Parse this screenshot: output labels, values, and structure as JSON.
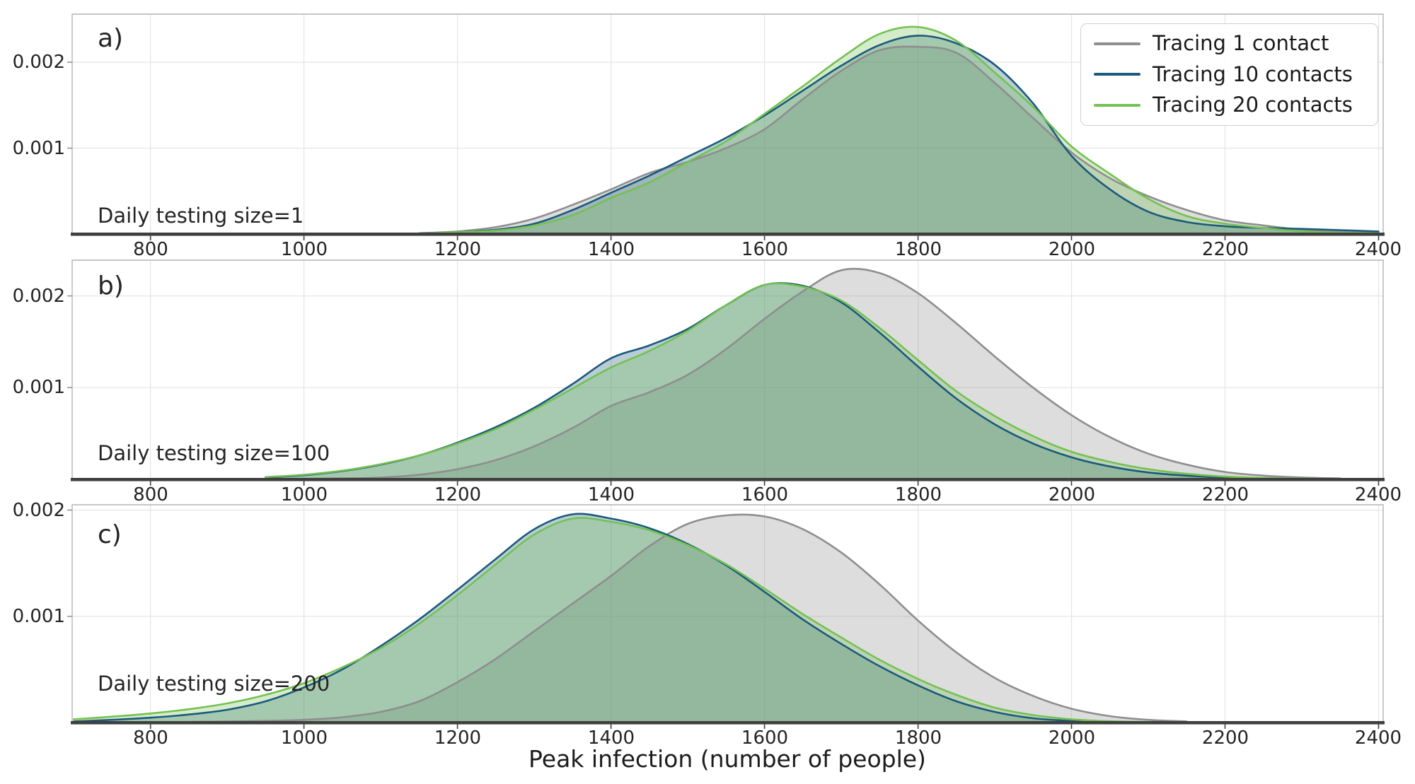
{
  "figure": {
    "xlabel": "Peak infection (number of people)",
    "background": "#ffffff",
    "grid_color": "#e4e4e4",
    "spine_color": "#b3b3b3",
    "baseline_color": "#3f3f3f",
    "tick_color": "#3f3f3f",
    "text_color": "#242424"
  },
  "legend": {
    "position": "upper right",
    "items": [
      {
        "label": "Tracing 1 contact",
        "color": "#8e8e8e"
      },
      {
        "label": "Tracing 10 contacts",
        "color": "#1a5a7c"
      },
      {
        "label": "Tracing 20 contacts",
        "color": "#74c152"
      }
    ]
  },
  "chart_data": [
    {
      "type": "area",
      "panel_label": "a)",
      "annotation": "Daily testing size=1",
      "xlim": [
        700,
        2400
      ],
      "ylim": [
        0,
        0.00256
      ],
      "grid": true,
      "x_ticks": [
        {
          "v": 800,
          "label": "800"
        },
        {
          "v": 1000,
          "label": "1000"
        },
        {
          "v": 1200,
          "label": "1200"
        },
        {
          "v": 1400,
          "label": "1400"
        },
        {
          "v": 1600,
          "label": "1600"
        },
        {
          "v": 1800,
          "label": "1800"
        },
        {
          "v": 2000,
          "label": "2000"
        },
        {
          "v": 2200,
          "label": "2200"
        },
        {
          "v": 2400,
          "label": "2400"
        }
      ],
      "y_ticks": [
        {
          "v": 0.001,
          "label": "0.001"
        },
        {
          "v": 0.002,
          "label": "0.002"
        }
      ],
      "series": [
        {
          "name": "Tracing 1 contact",
          "color": "#8e8e8e",
          "x": [
            1150,
            1200,
            1250,
            1300,
            1350,
            1400,
            1450,
            1500,
            1550,
            1600,
            1650,
            1700,
            1750,
            1800,
            1850,
            1900,
            1950,
            2000,
            2050,
            2100,
            2150,
            2200,
            2250,
            2300,
            2350,
            2400
          ],
          "y": [
            1e-05,
            3e-05,
            8e-05,
            0.00018,
            0.00034,
            0.00052,
            0.00071,
            0.00084,
            0.001,
            0.00122,
            0.00157,
            0.0019,
            0.00214,
            0.00218,
            0.00211,
            0.00176,
            0.00135,
            0.00095,
            0.00065,
            0.00044,
            0.00028,
            0.00016,
            0.0001,
            5e-05,
            2.5e-05,
            1.3e-05
          ]
        },
        {
          "name": "Tracing 10 contacts",
          "color": "#1a5a7c",
          "x": [
            1150,
            1200,
            1250,
            1300,
            1350,
            1400,
            1450,
            1500,
            1550,
            1600,
            1650,
            1700,
            1750,
            1800,
            1850,
            1900,
            1950,
            2000,
            2050,
            2100,
            2150,
            2200,
            2250,
            2300,
            2350,
            2400
          ],
          "y": [
            5e-06,
            2e-05,
            5e-05,
            0.00012,
            0.00028,
            0.00048,
            0.00068,
            0.0009,
            0.00112,
            0.00138,
            0.00167,
            0.00196,
            0.0022,
            0.00231,
            0.00222,
            0.00197,
            0.00152,
            0.00091,
            0.00052,
            0.00026,
            0.00014,
            9e-05,
            7e-05,
            6e-05,
            4.5e-05,
            3e-05
          ]
        },
        {
          "name": "Tracing 20 contacts",
          "color": "#74c152",
          "x": [
            1150,
            1200,
            1250,
            1300,
            1350,
            1400,
            1450,
            1500,
            1550,
            1600,
            1650,
            1700,
            1750,
            1800,
            1850,
            1900,
            1950,
            2000,
            2050,
            2100,
            2150,
            2200,
            2250,
            2300,
            2350,
            2400
          ],
          "y": [
            5e-06,
            2e-05,
            4e-05,
            0.0001,
            0.00022,
            0.00042,
            0.0006,
            0.00084,
            0.00108,
            0.0014,
            0.00172,
            0.00205,
            0.00233,
            0.00241,
            0.00225,
            0.00188,
            0.00148,
            0.00102,
            0.0007,
            0.00041,
            0.00021,
            0.00012,
            7e-05,
            3e-05,
            1.5e-05,
            1e-05
          ]
        }
      ]
    },
    {
      "type": "area",
      "panel_label": "b)",
      "annotation": "Daily testing size=100",
      "xlim": [
        700,
        2400
      ],
      "ylim": [
        0,
        0.00239
      ],
      "grid": true,
      "x_ticks": [
        {
          "v": 800,
          "label": "800"
        },
        {
          "v": 1000,
          "label": "1000"
        },
        {
          "v": 1200,
          "label": "1200"
        },
        {
          "v": 1400,
          "label": "1400"
        },
        {
          "v": 1600,
          "label": "1600"
        },
        {
          "v": 1800,
          "label": "1800"
        },
        {
          "v": 2000,
          "label": "2000"
        },
        {
          "v": 2200,
          "label": "2200"
        },
        {
          "v": 2400,
          "label": "2400"
        }
      ],
      "y_ticks": [
        {
          "v": 0.001,
          "label": "0.001"
        },
        {
          "v": 0.002,
          "label": "0.002"
        }
      ],
      "series": [
        {
          "name": "Tracing 1 contact",
          "color": "#8e8e8e",
          "x": [
            950,
            1000,
            1050,
            1100,
            1150,
            1200,
            1250,
            1300,
            1350,
            1400,
            1450,
            1500,
            1550,
            1600,
            1650,
            1700,
            1750,
            1800,
            1850,
            1900,
            1950,
            2000,
            2050,
            2100,
            2150,
            2200,
            2250,
            2300,
            2350
          ],
          "y": [
            0,
            5e-06,
            1e-05,
            2e-05,
            5e-05,
            0.00011,
            0.00021,
            0.00036,
            0.00056,
            0.0008,
            0.00095,
            0.00114,
            0.00142,
            0.00175,
            0.00205,
            0.00228,
            0.00225,
            0.00203,
            0.0017,
            0.00134,
            0.001,
            0.0007,
            0.00046,
            0.00028,
            0.00016,
            8e-05,
            4e-05,
            2e-05,
            1e-05
          ]
        },
        {
          "name": "Tracing 10 contacts",
          "color": "#1a5a7c",
          "x": [
            950,
            1000,
            1050,
            1100,
            1150,
            1200,
            1250,
            1300,
            1350,
            1400,
            1450,
            1500,
            1550,
            1600,
            1650,
            1700,
            1750,
            1800,
            1850,
            1900,
            1950,
            2000,
            2050,
            2100,
            2150,
            2200,
            2250,
            2300,
            2350
          ],
          "y": [
            2e-05,
            4.5e-05,
            9e-05,
            0.00016,
            0.00026,
            0.0004,
            0.00057,
            0.00078,
            0.00104,
            0.00132,
            0.00146,
            0.00164,
            0.0019,
            0.00212,
            0.00211,
            0.00193,
            0.0016,
            0.00123,
            0.00088,
            0.0006,
            0.00039,
            0.00024,
            0.00014,
            7.5e-05,
            4e-05,
            2e-05,
            1e-05,
            5e-06,
            0
          ]
        },
        {
          "name": "Tracing 20 contacts",
          "color": "#74c152",
          "x": [
            950,
            1000,
            1050,
            1100,
            1150,
            1200,
            1250,
            1300,
            1350,
            1400,
            1450,
            1500,
            1550,
            1600,
            1650,
            1700,
            1750,
            1800,
            1850,
            1900,
            1950,
            2000,
            2050,
            2100,
            2150,
            2200,
            2250,
            2300,
            2350
          ],
          "y": [
            2.5e-05,
            5e-05,
            9.5e-05,
            0.000165,
            0.00026,
            0.00039,
            0.00055,
            0.00076,
            0.00099,
            0.00122,
            0.0014,
            0.00162,
            0.0019,
            0.00212,
            0.0021,
            0.00195,
            0.00165,
            0.0013,
            0.00096,
            0.00069,
            0.00047,
            0.0003,
            0.00019,
            0.00011,
            6e-05,
            3e-05,
            1.5e-05,
            8e-06,
            0
          ]
        }
      ]
    },
    {
      "type": "area",
      "panel_label": "c)",
      "annotation": "Daily testing size=200",
      "xlim": [
        700,
        2400
      ],
      "ylim": [
        0,
        0.00205
      ],
      "grid": true,
      "x_ticks": [
        {
          "v": 800,
          "label": "800"
        },
        {
          "v": 1000,
          "label": "1000"
        },
        {
          "v": 1200,
          "label": "1200"
        },
        {
          "v": 1400,
          "label": "1400"
        },
        {
          "v": 1600,
          "label": "1600"
        },
        {
          "v": 1800,
          "label": "1800"
        },
        {
          "v": 2000,
          "label": "2000"
        },
        {
          "v": 2200,
          "label": "2200"
        },
        {
          "v": 2400,
          "label": "2400"
        }
      ],
      "y_ticks": [
        {
          "v": 0.001,
          "label": "0.001"
        },
        {
          "v": 0.002,
          "label": "0.002"
        }
      ],
      "series": [
        {
          "name": "Tracing 1 contact",
          "color": "#8e8e8e",
          "x": [
            700,
            750,
            800,
            850,
            900,
            950,
            1000,
            1050,
            1100,
            1150,
            1200,
            1250,
            1300,
            1350,
            1400,
            1450,
            1500,
            1550,
            1600,
            1650,
            1700,
            1750,
            1800,
            1850,
            1900,
            1950,
            2000,
            2050,
            2100,
            2150
          ],
          "y": [
            0,
            0,
            0,
            5e-06,
            1e-05,
            1.5e-05,
            2.5e-05,
            5e-05,
            0.0001,
            0.0002,
            0.00038,
            0.0006,
            0.00086,
            0.00112,
            0.00138,
            0.00166,
            0.00187,
            0.00195,
            0.00194,
            0.00182,
            0.0016,
            0.0013,
            0.00096,
            0.00066,
            0.00042,
            0.00025,
            0.00013,
            6e-05,
            2.5e-05,
            1e-05
          ]
        },
        {
          "name": "Tracing 10 contacts",
          "color": "#1a5a7c",
          "x": [
            700,
            750,
            800,
            850,
            900,
            950,
            1000,
            1050,
            1100,
            1150,
            1200,
            1250,
            1300,
            1350,
            1400,
            1450,
            1500,
            1550,
            1600,
            1650,
            1700,
            1750,
            1800,
            1850,
            1900,
            1950,
            2000,
            2050,
            2100,
            2150
          ],
          "y": [
            1e-05,
            2.5e-05,
            4.5e-05,
            7.5e-05,
            0.00012,
            0.0002,
            0.00033,
            0.0005,
            0.00072,
            0.00097,
            0.00125,
            0.00154,
            0.00182,
            0.00196,
            0.00192,
            0.00183,
            0.00168,
            0.00148,
            0.00123,
            0.00097,
            0.00074,
            0.00053,
            0.00035,
            0.0002,
            0.0001,
            4e-05,
            1.5e-05,
            5e-06,
            0,
            0
          ]
        },
        {
          "name": "Tracing 20 contacts",
          "color": "#74c152",
          "x": [
            700,
            750,
            800,
            850,
            900,
            950,
            1000,
            1050,
            1100,
            1150,
            1200,
            1250,
            1300,
            1350,
            1400,
            1450,
            1500,
            1550,
            1600,
            1650,
            1700,
            1750,
            1800,
            1850,
            1900,
            1950,
            2000,
            2050,
            2100,
            2150
          ],
          "y": [
            3e-05,
            5.5e-05,
            8.5e-05,
            0.000125,
            0.00018,
            0.00026,
            0.00037,
            0.00052,
            0.0007,
            0.00093,
            0.0012,
            0.00149,
            0.00177,
            0.00192,
            0.00189,
            0.00181,
            0.00167,
            0.00149,
            0.00126,
            0.00102,
            0.0008,
            0.00059,
            0.00041,
            0.00026,
            0.00014,
            7e-05,
            3e-05,
            1.2e-05,
            5e-06,
            0
          ]
        }
      ]
    }
  ]
}
